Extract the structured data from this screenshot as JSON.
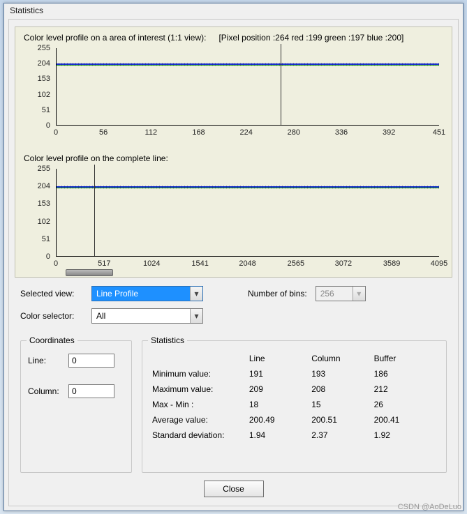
{
  "window": {
    "title": "Statistics"
  },
  "chart1": {
    "type": "line",
    "title": "Color level profile on a area of interest (1:1 view):",
    "status": "[Pixel position :264  red :199 green :197 blue :200]",
    "ylim": [
      0,
      255
    ],
    "yticks": [
      0,
      51,
      102,
      153,
      204,
      255
    ],
    "xlim": [
      0,
      451
    ],
    "xticks": [
      0,
      56,
      112,
      168,
      224,
      280,
      336,
      392,
      451
    ],
    "cursor_x": 264,
    "series": [
      {
        "name": "red",
        "color": "#d01818",
        "level": 199
      },
      {
        "name": "green",
        "color": "#18a018",
        "level": 197
      },
      {
        "name": "blue",
        "color": "#1830d0",
        "level": 200
      }
    ],
    "background_color": "#efefdf"
  },
  "chart2": {
    "type": "line",
    "title": "Color level profile on the complete line:",
    "ylim": [
      0,
      255
    ],
    "yticks": [
      0,
      51,
      102,
      153,
      204,
      255
    ],
    "xlim": [
      0,
      4095
    ],
    "xticks": [
      0,
      517,
      1024,
      1541,
      2048,
      2565,
      3072,
      3589,
      4095
    ],
    "cursor_x": 400,
    "series": [
      {
        "name": "red",
        "color": "#d01818",
        "level": 199
      },
      {
        "name": "green",
        "color": "#18a018",
        "level": 197
      },
      {
        "name": "blue",
        "color": "#1830d0",
        "level": 200
      }
    ],
    "scroll_indicator": true
  },
  "controls": {
    "selected_view_label": "Selected view:",
    "selected_view_value": "Line Profile",
    "color_selector_label": "Color selector:",
    "color_selector_value": "All",
    "bins_label": "Number of bins:",
    "bins_value": "256"
  },
  "coords": {
    "legend": "Coordinates",
    "line_label": "Line:",
    "line_value": "0",
    "column_label": "Column:",
    "column_value": "0"
  },
  "stats": {
    "legend": "Statistics",
    "headers": [
      "",
      "Line",
      "Column",
      "Buffer"
    ],
    "rows": [
      [
        "Minimum value:",
        "191",
        "193",
        "186"
      ],
      [
        "Maximum value:",
        "209",
        "208",
        "212"
      ],
      [
        "Max - Min :",
        "18",
        "15",
        "26"
      ],
      [
        "Average value:",
        "200.49",
        "200.51",
        "200.41"
      ],
      [
        "Standard deviation:",
        "1.94",
        "2.37",
        "1.92"
      ]
    ]
  },
  "buttons": {
    "close": "Close"
  },
  "watermark": "CSDN @AoDeLuo"
}
